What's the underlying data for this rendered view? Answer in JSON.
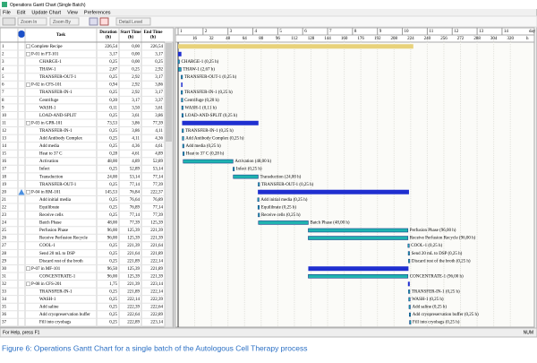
{
  "window_title": "Operations Gantt Chart (Single Batch)",
  "menu": [
    "File",
    "Edit",
    "Update Chart",
    "View",
    "Preferences"
  ],
  "toolbar": [
    "Zoom In",
    "Zoom By",
    "Detail Level"
  ],
  "columns": [
    [
      "Task"
    ],
    [
      "Duration",
      "(h)"
    ],
    [
      "Start Time",
      "(h)"
    ],
    [
      "End Time",
      "(h)"
    ]
  ],
  "timeline": {
    "days": [
      "1",
      "2",
      "3",
      "4",
      "5",
      "6",
      "7",
      "8",
      "9",
      "10",
      "11",
      "12",
      "13",
      "14"
    ],
    "day_unit": "day",
    "hours": [
      16,
      32,
      48,
      64,
      80,
      96,
      112,
      128,
      144,
      160,
      176,
      192,
      208,
      224,
      240,
      256,
      272,
      288,
      304,
      320
    ],
    "hour_unit": "h"
  },
  "colors": {
    "recipe": "#e8d27a",
    "procedure": "#1f2fd0",
    "operation": "#1fb3b0"
  },
  "rows": [
    {
      "no": "1",
      "task": "Complete Recipe",
      "dur": "226,54",
      "start": "0,00",
      "end": "226,54",
      "kind": "recipe"
    },
    {
      "no": "2",
      "task": "P-01 in FT-101",
      "dur": "3,17",
      "start": "0,00",
      "end": "3,17",
      "kind": "procedure"
    },
    {
      "no": "3",
      "task": "CHARGE-1",
      "dur": "0,25",
      "start": "0,00",
      "end": "0,25",
      "kind": "operation",
      "label": "CHARGE-1 (0,25 h)"
    },
    {
      "no": "4",
      "task": "THAW-1",
      "dur": "2,67",
      "start": "0,25",
      "end": "2,92",
      "kind": "operation",
      "label": "THAW-1 (2,67 h)"
    },
    {
      "no": "5",
      "task": "TRANSFER-OUT-1",
      "dur": "0,25",
      "start": "2,92",
      "end": "3,17",
      "kind": "operation",
      "label": "TRANSFER-OUT-1 (0,25 h)"
    },
    {
      "no": "6",
      "task": "P-02 in CFS-101",
      "dur": "0,94",
      "start": "2,92",
      "end": "3,86",
      "kind": "procedure"
    },
    {
      "no": "7",
      "task": "TRANSFER-IN-1",
      "dur": "0,25",
      "start": "2,92",
      "end": "3,17",
      "kind": "operation",
      "label": "TRANSFER-IN-1 (0,25 h)"
    },
    {
      "no": "8",
      "task": "Centrifuge",
      "dur": "0,20",
      "start": "3,17",
      "end": "3,37",
      "kind": "operation",
      "label": "Centrifuge (0,20 h)"
    },
    {
      "no": "9",
      "task": "WASH-1",
      "dur": "0,11",
      "start": "3,50",
      "end": "3,61",
      "kind": "operation",
      "label": "WASH-1 (0,11 h)"
    },
    {
      "no": "10",
      "task": "LOAD-AND-SPLIT",
      "dur": "0,25",
      "start": "3,61",
      "end": "3,86",
      "kind": "operation",
      "label": "LOAD-AND-SPLIT (0,25 h)"
    },
    {
      "no": "11",
      "task": "P-03 in GPR-101",
      "dur": "73,53",
      "start": "3,86",
      "end": "77,39",
      "kind": "procedure"
    },
    {
      "no": "12",
      "task": "TRANSFER-IN-1",
      "dur": "0,25",
      "start": "3,86",
      "end": "4,11",
      "kind": "operation",
      "label": "TRANSFER-IN-1 (0,25 h)"
    },
    {
      "no": "13",
      "task": "Add Antibody Complex",
      "dur": "0,25",
      "start": "4,11",
      "end": "4,36",
      "kind": "operation",
      "label": "Add Antibody Complex (0,25 h)"
    },
    {
      "no": "14",
      "task": "Add media",
      "dur": "0,25",
      "start": "4,36",
      "end": "4,61",
      "kind": "operation",
      "label": "Add media (0,25 h)"
    },
    {
      "no": "15",
      "task": "Heat to 37 C",
      "dur": "0,28",
      "start": "4,61",
      "end": "4,89",
      "kind": "operation",
      "label": "Heat to 37 C (0,28 h)"
    },
    {
      "no": "16",
      "task": "Activation",
      "dur": "48,00",
      "start": "4,89",
      "end": "52,89",
      "kind": "operation",
      "label": "Activation (48,00 h)"
    },
    {
      "no": "17",
      "task": "Infect",
      "dur": "0,25",
      "start": "52,89",
      "end": "53,14",
      "kind": "operation",
      "label": "Infect (0,25 h)"
    },
    {
      "no": "18",
      "task": "Transduction",
      "dur": "24,00",
      "start": "53,14",
      "end": "77,14",
      "kind": "operation",
      "label": "Transduction (24,00 h)"
    },
    {
      "no": "19",
      "task": "TRANSFER-OUT-1",
      "dur": "0,25",
      "start": "77,14",
      "end": "77,39",
      "kind": "operation",
      "label": "TRANSFER-OUT-1 (0,25 h)"
    },
    {
      "no": "20",
      "task": "P-04 in RM-101",
      "dur": "145,53",
      "start": "76,84",
      "end": "222,37",
      "kind": "procedure",
      "warn": true
    },
    {
      "no": "21",
      "task": "Add initial media",
      "dur": "0,25",
      "start": "76,64",
      "end": "76,89",
      "kind": "operation",
      "label": "Add initial media (0,25 h)"
    },
    {
      "no": "22",
      "task": "Equilibrate",
      "dur": "0,25",
      "start": "76,89",
      "end": "77,14",
      "kind": "operation",
      "label": "Equilibrate (0,25 h)"
    },
    {
      "no": "23",
      "task": "Receive cells",
      "dur": "0,25",
      "start": "77,14",
      "end": "77,39",
      "kind": "operation",
      "label": "Receive cells (0,25 h)"
    },
    {
      "no": "24",
      "task": "Batch Phase",
      "dur": "48,00",
      "start": "77,39",
      "end": "125,39",
      "kind": "operation",
      "label": "Batch Phase (48,00 h)"
    },
    {
      "no": "25",
      "task": "Perfusion Phase",
      "dur": "96,00",
      "start": "125,39",
      "end": "221,39",
      "kind": "operation",
      "label": "Perfusion Phase (96,00 h)"
    },
    {
      "no": "26",
      "task": "Receive Perfusion Recycle",
      "dur": "96,00",
      "start": "125,39",
      "end": "221,39",
      "kind": "operation",
      "label": "Receive Perfusion Recycle (96,00 h)"
    },
    {
      "no": "27",
      "task": "COOL-1",
      "dur": "0,25",
      "start": "221,39",
      "end": "221,64",
      "kind": "operation",
      "label": "COOL-1 (0,25 h)"
    },
    {
      "no": "28",
      "task": "Send 20 mL to DSP",
      "dur": "0,25",
      "start": "221,64",
      "end": "221,89",
      "kind": "operation",
      "label": "Send 20 mL to DSP (0,25 h)"
    },
    {
      "no": "29",
      "task": "Discard rest of the broth",
      "dur": "0,25",
      "start": "221,89",
      "end": "222,14",
      "kind": "operation",
      "label": "Discard rest of the broth (0,25 h)"
    },
    {
      "no": "30",
      "task": "P-07 in MF-101",
      "dur": "96,50",
      "start": "125,39",
      "end": "221,89",
      "kind": "procedure"
    },
    {
      "no": "31",
      "task": "CONCENTRATE-1",
      "dur": "96,00",
      "start": "125,39",
      "end": "221,39",
      "kind": "operation",
      "label": "CONCENTRATE-1 (96,00 h)"
    },
    {
      "no": "32",
      "task": "P-08 in CFS-201",
      "dur": "1,75",
      "start": "221,39",
      "end": "223,14",
      "kind": "procedure"
    },
    {
      "no": "33",
      "task": "TRANSFER-IN-1",
      "dur": "0,25",
      "start": "221,89",
      "end": "222,14",
      "kind": "operation",
      "label": "TRANSFER-IN-1 (0,25 h)"
    },
    {
      "no": "34",
      "task": "WASH-1",
      "dur": "0,25",
      "start": "222,14",
      "end": "222,39",
      "kind": "operation",
      "label": "WASH-1 (0,25 h)"
    },
    {
      "no": "35",
      "task": "Add saline",
      "dur": "0,25",
      "start": "222,39",
      "end": "222,64",
      "kind": "operation",
      "label": "Add saline (0,25 h)"
    },
    {
      "no": "36",
      "task": "Add cryopreservation buffer",
      "dur": "0,25",
      "start": "222,64",
      "end": "222,89",
      "kind": "operation",
      "label": "Add cryopreservation buffer (0,25 h)"
    },
    {
      "no": "37",
      "task": "Fill into cryobags",
      "dur": "0,25",
      "start": "222,89",
      "end": "223,14",
      "kind": "operation",
      "label": "Fill into cryobags (0,25 h)"
    }
  ],
  "status": {
    "left": "For Help, press F1",
    "right": "NUM"
  },
  "caption": "Figure 6: Operations Gantt Chart for a single batch of the Autologous Cell Therapy process"
}
